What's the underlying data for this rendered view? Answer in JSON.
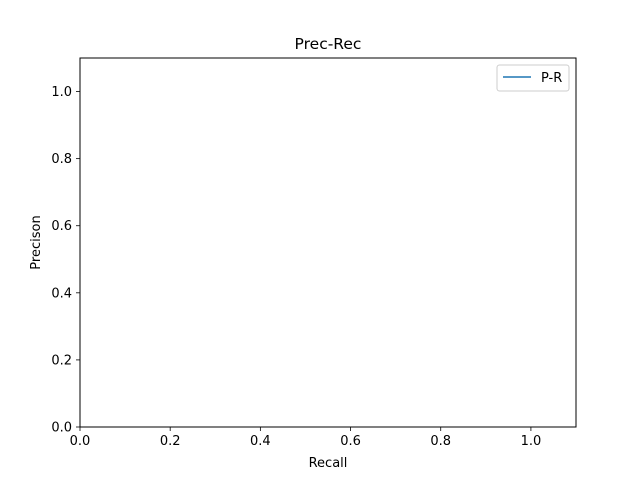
{
  "chart_data": {
    "type": "line",
    "title": "Prec-Rec",
    "xlabel": "Recall",
    "ylabel": "Precison",
    "xlim": [
      0,
      1.1
    ],
    "ylim": [
      0,
      1.1
    ],
    "xticks": [
      0.0,
      0.2,
      0.4,
      0.6,
      0.8,
      1.0
    ],
    "yticks": [
      0.0,
      0.2,
      0.4,
      0.6,
      0.8,
      1.0
    ],
    "xtick_labels": [
      "0.0",
      "0.2",
      "0.4",
      "0.6",
      "0.8",
      "1.0"
    ],
    "ytick_labels": [
      "0.0",
      "0.2",
      "0.4",
      "0.6",
      "0.8",
      "1.0"
    ],
    "grid": false,
    "legend_position": "top-right",
    "series": [
      {
        "name": "P-R",
        "color": "#1f77b4",
        "x": [],
        "y": []
      }
    ]
  }
}
